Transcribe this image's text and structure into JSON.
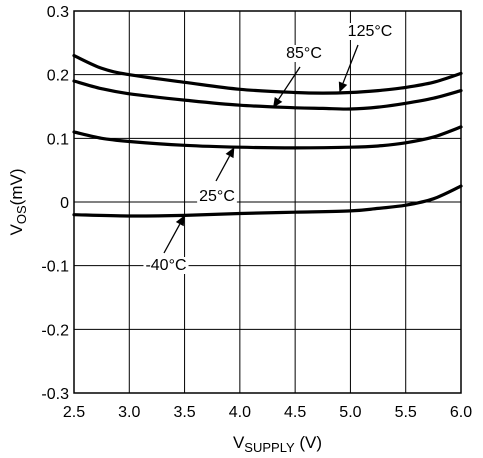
{
  "chart_data": {
    "type": "line",
    "title": "",
    "xlabel": {
      "main": "V",
      "sub": "SUPPLY",
      "unit": " (V)"
    },
    "ylabel": {
      "main": "V",
      "sub": "OS",
      "unit": "(mV)"
    },
    "xlim": [
      2.5,
      6.0
    ],
    "ylim": [
      -0.3,
      0.3
    ],
    "x_ticks": [
      "2.5",
      "3.0",
      "3.5",
      "4.0",
      "4.5",
      "5.0",
      "5.5",
      "6.0"
    ],
    "y_ticks": [
      "0.3",
      "0.2",
      "0.1",
      "0",
      "-0.1",
      "-0.2",
      "-0.3"
    ],
    "grid": true,
    "series": [
      {
        "name": "125°C",
        "x": [
          2.5,
          2.75,
          3.0,
          3.5,
          4.0,
          4.5,
          4.75,
          5.0,
          5.25,
          5.5,
          5.75,
          6.0
        ],
        "y": [
          0.23,
          0.21,
          0.2,
          0.188,
          0.177,
          0.172,
          0.171,
          0.172,
          0.175,
          0.18,
          0.188,
          0.202
        ]
      },
      {
        "name": "85°C",
        "x": [
          2.5,
          2.75,
          3.0,
          3.5,
          4.0,
          4.5,
          4.75,
          5.0,
          5.25,
          5.5,
          5.75,
          6.0
        ],
        "y": [
          0.19,
          0.178,
          0.17,
          0.16,
          0.152,
          0.148,
          0.147,
          0.146,
          0.149,
          0.155,
          0.163,
          0.175
        ]
      },
      {
        "name": "25°C",
        "x": [
          2.5,
          2.75,
          3.0,
          3.5,
          4.0,
          4.5,
          5.0,
          5.25,
          5.5,
          5.75,
          6.0
        ],
        "y": [
          0.11,
          0.1,
          0.095,
          0.089,
          0.086,
          0.085,
          0.086,
          0.088,
          0.093,
          0.102,
          0.118
        ]
      },
      {
        "name": "-40°C",
        "x": [
          2.5,
          3.0,
          3.5,
          4.0,
          4.5,
          5.0,
          5.25,
          5.5,
          5.75,
          6.0
        ],
        "y": [
          -0.02,
          -0.022,
          -0.021,
          -0.018,
          -0.016,
          -0.014,
          -0.01,
          -0.005,
          0.005,
          0.025
        ]
      }
    ],
    "annotations": [
      {
        "text": "125°C",
        "series": "125°C",
        "arrow_to": [
          4.9,
          0.172
        ]
      },
      {
        "text": "85°C",
        "series": "85°C",
        "arrow_to": [
          4.3,
          0.148
        ]
      },
      {
        "text": "25°C",
        "series": "25°C",
        "arrow_to": [
          3.95,
          0.086
        ]
      },
      {
        "text": "-40°C",
        "series": "-40°C",
        "arrow_to": [
          3.5,
          -0.021
        ]
      }
    ]
  }
}
